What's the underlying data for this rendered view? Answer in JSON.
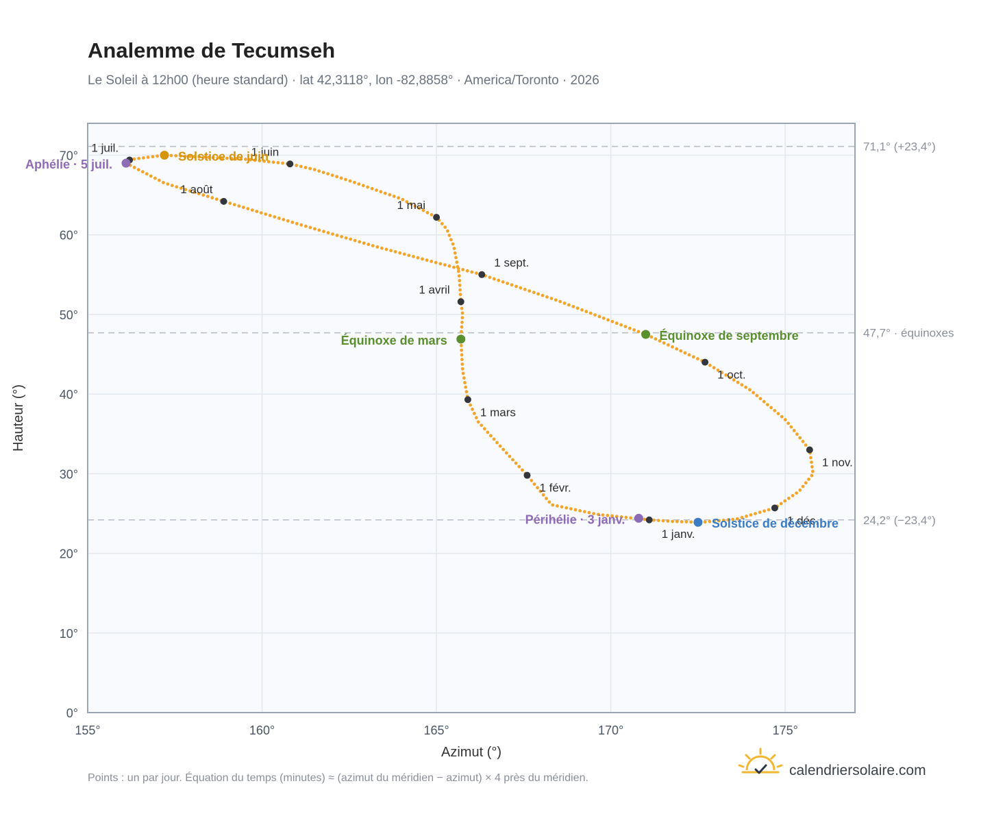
{
  "header": {
    "title": "Analemme de Tecumseh",
    "subtitle": "Le Soleil à 12h00 (heure standard) · lat 42,3118°, lon -82,8858° · America/Toronto · 2026"
  },
  "footer": {
    "note": "Points : un par jour. Équation du temps (minutes) ≈ (azimut du méridien − azimut) × 4 près du méridien.",
    "brand": "calendriersolaire.com",
    "logo_icon": "sun-check-icon"
  },
  "colors": {
    "curve": "#f2a52a",
    "month_dot": "#33363d",
    "solstice_june": "#d4940c",
    "solstice_december": "#3b7cc4",
    "equinox": "#5a8f2e",
    "apsis": "#8e6bb5",
    "plot_bg": "#f8fafd",
    "grid": "#e3e8ef",
    "frame": "#9aa5b4",
    "reference": "#b9bfc8"
  },
  "chart_data": {
    "type": "scatter",
    "xlabel": "Azimut (°)",
    "ylabel": "Hauteur (°)",
    "xlim": [
      155,
      177
    ],
    "ylim": [
      0,
      74
    ],
    "x_ticks": [
      {
        "value": 155,
        "label": "155°"
      },
      {
        "value": 160,
        "label": "160°"
      },
      {
        "value": 165,
        "label": "165°"
      },
      {
        "value": 170,
        "label": "170°"
      },
      {
        "value": 175,
        "label": "175°"
      }
    ],
    "y_ticks": [
      {
        "value": 0,
        "label": "0°"
      },
      {
        "value": 10,
        "label": "10°"
      },
      {
        "value": 20,
        "label": "20°"
      },
      {
        "value": 30,
        "label": "30°"
      },
      {
        "value": 40,
        "label": "40°"
      },
      {
        "value": 50,
        "label": "50°"
      },
      {
        "value": 60,
        "label": "60°"
      },
      {
        "value": 70,
        "label": "70°"
      }
    ],
    "grid": true,
    "reference_lines": [
      {
        "y": 71.1,
        "label": "71,1° (+23,4°)"
      },
      {
        "y": 47.7,
        "label": "47,7° · équinoxes"
      },
      {
        "y": 24.2,
        "label": "24,2° (−23,4°)"
      }
    ],
    "daily_path": [
      [
        171.1,
        24.2
      ],
      [
        169.6,
        24.9
      ],
      [
        168.3,
        26.1
      ],
      [
        167.6,
        29.8
      ],
      [
        166.8,
        33.6
      ],
      [
        166.2,
        36.5
      ],
      [
        165.9,
        39.3
      ],
      [
        165.75,
        43.0
      ],
      [
        165.7,
        46.9
      ],
      [
        165.75,
        50.0
      ],
      [
        165.7,
        51.6
      ],
      [
        165.65,
        55.0
      ],
      [
        165.5,
        58.5
      ],
      [
        165.3,
        60.7
      ],
      [
        165.0,
        62.2
      ],
      [
        164.0,
        64.5
      ],
      [
        162.5,
        66.8
      ],
      [
        161.5,
        68.2
      ],
      [
        160.8,
        68.9
      ],
      [
        159.5,
        69.5
      ],
      [
        157.2,
        70.0
      ],
      [
        156.3,
        69.5
      ],
      [
        156.1,
        69.0
      ],
      [
        157.2,
        66.5
      ],
      [
        158.9,
        64.2
      ],
      [
        161.0,
        61.4
      ],
      [
        163.2,
        58.6
      ],
      [
        165.0,
        56.5
      ],
      [
        166.3,
        55.0
      ],
      [
        168.5,
        51.7
      ],
      [
        171.0,
        47.5
      ],
      [
        172.7,
        44.0
      ],
      [
        174.0,
        40.5
      ],
      [
        175.0,
        36.8
      ],
      [
        175.7,
        33.0
      ],
      [
        175.8,
        30.0
      ],
      [
        175.4,
        27.8
      ],
      [
        174.7,
        25.7
      ],
      [
        173.6,
        24.3
      ],
      [
        172.6,
        23.9
      ],
      [
        171.8,
        24.0
      ],
      [
        171.1,
        24.2
      ]
    ],
    "month_markers": [
      {
        "label": "1 janv.",
        "x": 171.1,
        "y": 24.2,
        "anchor": "start",
        "dx": 18,
        "dy": 26
      },
      {
        "label": "1 févr.",
        "x": 167.6,
        "y": 29.8,
        "anchor": "start",
        "dx": 18,
        "dy": 24
      },
      {
        "label": "1 mars",
        "x": 165.9,
        "y": 39.3,
        "anchor": "start",
        "dx": 18,
        "dy": 24
      },
      {
        "label": "1 avril",
        "x": 165.7,
        "y": 51.6,
        "anchor": "end",
        "dx": -16,
        "dy": -12
      },
      {
        "label": "1 mai",
        "x": 165.0,
        "y": 62.2,
        "anchor": "end",
        "dx": -16,
        "dy": -12
      },
      {
        "label": "1 juin",
        "x": 160.8,
        "y": 68.9,
        "anchor": "end",
        "dx": -16,
        "dy": -12
      },
      {
        "label": "1 juil.",
        "x": 156.2,
        "y": 69.4,
        "anchor": "end",
        "dx": -16,
        "dy": -12
      },
      {
        "label": "1 août",
        "x": 158.9,
        "y": 64.2,
        "anchor": "end",
        "dx": -16,
        "dy": -12
      },
      {
        "label": "1 sept.",
        "x": 166.3,
        "y": 55.0,
        "anchor": "start",
        "dx": 18,
        "dy": -12
      },
      {
        "label": "1 oct.",
        "x": 172.7,
        "y": 44.0,
        "anchor": "start",
        "dx": 18,
        "dy": 24
      },
      {
        "label": "1 nov.",
        "x": 175.7,
        "y": 33.0,
        "anchor": "start",
        "dx": 18,
        "dy": 24
      },
      {
        "label": "1 déc.",
        "x": 174.7,
        "y": 25.7,
        "anchor": "start",
        "dx": 18,
        "dy": 24
      }
    ],
    "events": [
      {
        "label": "Solstice de juin",
        "x": 157.2,
        "y": 70.0,
        "color_key": "solstice_june",
        "anchor": "start",
        "dx": 20,
        "dy": 8
      },
      {
        "label": "Aphélie · 5 juil.",
        "x": 156.1,
        "y": 69.0,
        "color_key": "apsis",
        "anchor": "end",
        "dx": -20,
        "dy": 8
      },
      {
        "label": "Équinoxe de mars",
        "x": 165.7,
        "y": 46.9,
        "color_key": "equinox",
        "anchor": "end",
        "dx": -20,
        "dy": 8
      },
      {
        "label": "Équinoxe de septembre",
        "x": 171.0,
        "y": 47.5,
        "color_key": "equinox",
        "anchor": "start",
        "dx": 20,
        "dy": 8
      },
      {
        "label": "Périhélie · 3 janv.",
        "x": 170.8,
        "y": 24.4,
        "color_key": "apsis",
        "anchor": "end",
        "dx": -20,
        "dy": 8
      },
      {
        "label": "Solstice de décembre",
        "x": 172.5,
        "y": 23.9,
        "color_key": "solstice_december",
        "anchor": "start",
        "dx": 20,
        "dy": 8
      }
    ]
  }
}
